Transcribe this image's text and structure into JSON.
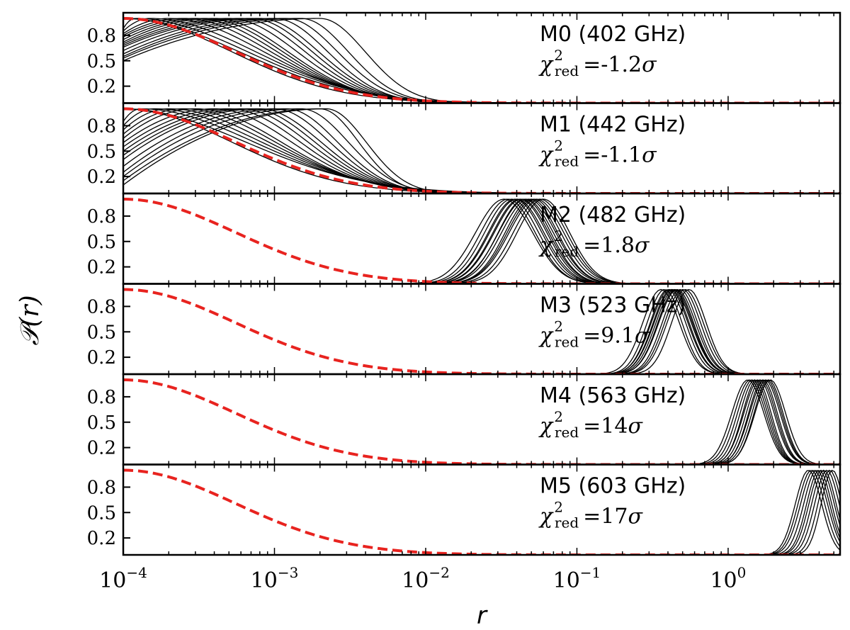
{
  "chart_data": {
    "type": "line",
    "xlabel": "r",
    "ylabel": "𝒫(r)",
    "x_scale": "log",
    "xlim": [
      0.0001,
      5.5
    ],
    "ylim": [
      0,
      1
    ],
    "grid": false,
    "x_ticks": [
      {
        "value": 0.0001,
        "base": "10",
        "exp": "−4"
      },
      {
        "value": 0.001,
        "base": "10",
        "exp": "−3"
      },
      {
        "value": 0.01,
        "base": "10",
        "exp": "−2"
      },
      {
        "value": 0.1,
        "base": "10",
        "exp": "−1"
      },
      {
        "value": 1,
        "base": "10",
        "exp": "0"
      }
    ],
    "y_ticks": [
      {
        "value": 0.2,
        "label": "0.2"
      },
      {
        "value": 0.5,
        "label": "0.5"
      },
      {
        "value": 0.8,
        "label": "0.8"
      }
    ],
    "reference_curve": {
      "color": "#e8231f",
      "style": "dashed",
      "shape": "half-gaussian in log r",
      "peak_r": 0.0001,
      "half_max_r": 0.00075,
      "zero_r": 0.004
    },
    "panels": [
      {
        "label": "M0 (402 GHz)",
        "chi_value": "=-1.2",
        "chi_unit": "σ",
        "curve_color": "#000000",
        "curve_family": "decreasing",
        "curves": [
          {
            "peak_r": 0.0001,
            "half_max_r": 0.0007,
            "min_level": 0.95
          },
          {
            "peak_r": 0.0001,
            "half_max_r": 0.0008,
            "min_level": 0.92
          },
          {
            "peak_r": 0.00012,
            "half_max_r": 0.0009,
            "min_level": 0.88
          },
          {
            "peak_r": 0.00015,
            "half_max_r": 0.001,
            "min_level": 0.85
          },
          {
            "peak_r": 0.0002,
            "half_max_r": 0.0011,
            "min_level": 0.82
          },
          {
            "peak_r": 0.00025,
            "half_max_r": 0.0012,
            "min_level": 0.8
          },
          {
            "peak_r": 0.0003,
            "half_max_r": 0.0013,
            "min_level": 0.78
          },
          {
            "peak_r": 0.00035,
            "half_max_r": 0.0014,
            "min_level": 0.75
          },
          {
            "peak_r": 0.0004,
            "half_max_r": 0.0015,
            "min_level": 0.72
          },
          {
            "peak_r": 0.0005,
            "half_max_r": 0.0017,
            "min_level": 0.7
          },
          {
            "peak_r": 0.0006,
            "half_max_r": 0.0019,
            "min_level": 0.68
          },
          {
            "peak_r": 0.0007,
            "half_max_r": 0.0021,
            "min_level": 0.66
          },
          {
            "peak_r": 0.0008,
            "half_max_r": 0.0023,
            "min_level": 0.62
          },
          {
            "peak_r": 0.001,
            "half_max_r": 0.0026,
            "min_level": 0.58
          },
          {
            "peak_r": 0.0012,
            "half_max_r": 0.003,
            "min_level": 0.55
          },
          {
            "peak_r": 0.0015,
            "half_max_r": 0.0035,
            "min_level": 0.53
          },
          {
            "peak_r": 0.002,
            "half_max_r": 0.0045,
            "min_level": 0.5
          }
        ]
      },
      {
        "label": "M1 (442 GHz)",
        "chi_value": "=-1.1",
        "chi_unit": "σ",
        "curve_color": "#000000",
        "curve_family": "decreasing",
        "curves": [
          {
            "peak_r": 0.0001,
            "half_max_r": 0.0007,
            "min_level": 0.95
          },
          {
            "peak_r": 0.0001,
            "half_max_r": 0.0009,
            "min_level": 0.9
          },
          {
            "peak_r": 0.00013,
            "half_max_r": 0.001,
            "min_level": 0.85
          },
          {
            "peak_r": 0.00016,
            "half_max_r": 0.0011,
            "min_level": 0.8
          },
          {
            "peak_r": 0.0002,
            "half_max_r": 0.0012,
            "min_level": 0.75
          },
          {
            "peak_r": 0.00025,
            "half_max_r": 0.0013,
            "min_level": 0.7
          },
          {
            "peak_r": 0.0003,
            "half_max_r": 0.0014,
            "min_level": 0.65
          },
          {
            "peak_r": 0.0004,
            "half_max_r": 0.0016,
            "min_level": 0.6
          },
          {
            "peak_r": 0.0005,
            "half_max_r": 0.0018,
            "min_level": 0.55
          },
          {
            "peak_r": 0.0006,
            "half_max_r": 0.002,
            "min_level": 0.5
          },
          {
            "peak_r": 0.0007,
            "half_max_r": 0.0022,
            "min_level": 0.45
          },
          {
            "peak_r": 0.0008,
            "half_max_r": 0.0024,
            "min_level": 0.4
          },
          {
            "peak_r": 0.001,
            "half_max_r": 0.0027,
            "min_level": 0.32
          },
          {
            "peak_r": 0.0012,
            "half_max_r": 0.003,
            "min_level": 0.25
          },
          {
            "peak_r": 0.0015,
            "half_max_r": 0.0035,
            "min_level": 0.2
          },
          {
            "peak_r": 0.002,
            "half_max_r": 0.004,
            "min_level": 0.15
          },
          {
            "peak_r": 0.0022,
            "half_max_r": 0.0045,
            "min_level": 0.1
          }
        ]
      },
      {
        "label": "M2 (482 GHz)",
        "chi_value": "=1.8",
        "chi_unit": "σ",
        "curve_color": "#000000",
        "curve_family": "peaked",
        "curves": [
          {
            "peak_r": 0.033,
            "half_max_r": 0.055
          },
          {
            "peak_r": 0.035,
            "half_max_r": 0.057
          },
          {
            "peak_r": 0.037,
            "half_max_r": 0.06
          },
          {
            "peak_r": 0.039,
            "half_max_r": 0.063
          },
          {
            "peak_r": 0.04,
            "half_max_r": 0.065
          },
          {
            "peak_r": 0.042,
            "half_max_r": 0.068
          },
          {
            "peak_r": 0.043,
            "half_max_r": 0.07
          },
          {
            "peak_r": 0.045,
            "half_max_r": 0.072
          },
          {
            "peak_r": 0.046,
            "half_max_r": 0.075
          },
          {
            "peak_r": 0.048,
            "half_max_r": 0.078
          },
          {
            "peak_r": 0.05,
            "half_max_r": 0.08
          },
          {
            "peak_r": 0.052,
            "half_max_r": 0.084
          },
          {
            "peak_r": 0.054,
            "half_max_r": 0.088
          },
          {
            "peak_r": 0.057,
            "half_max_r": 0.092
          },
          {
            "peak_r": 0.06,
            "half_max_r": 0.096
          }
        ]
      },
      {
        "label": "M3 (523 GHz)",
        "chi_value": "=9.1",
        "chi_unit": "σ",
        "curve_color": "#000000",
        "curve_family": "peaked",
        "curves": [
          {
            "peak_r": 0.36,
            "half_max_r": 0.5
          },
          {
            "peak_r": 0.38,
            "half_max_r": 0.52
          },
          {
            "peak_r": 0.4,
            "half_max_r": 0.55
          },
          {
            "peak_r": 0.41,
            "half_max_r": 0.57
          },
          {
            "peak_r": 0.42,
            "half_max_r": 0.58
          },
          {
            "peak_r": 0.43,
            "half_max_r": 0.6
          },
          {
            "peak_r": 0.44,
            "half_max_r": 0.61
          },
          {
            "peak_r": 0.45,
            "half_max_r": 0.62
          },
          {
            "peak_r": 0.46,
            "half_max_r": 0.64
          },
          {
            "peak_r": 0.48,
            "half_max_r": 0.66
          },
          {
            "peak_r": 0.5,
            "half_max_r": 0.69
          },
          {
            "peak_r": 0.52,
            "half_max_r": 0.72
          },
          {
            "peak_r": 0.55,
            "half_max_r": 0.75
          }
        ]
      },
      {
        "label": "M4 (563 GHz)",
        "chi_value": "=14",
        "chi_unit": "σ",
        "curve_color": "#000000",
        "curve_family": "peaked",
        "curves": [
          {
            "peak_r": 1.35,
            "half_max_r": 1.8
          },
          {
            "peak_r": 1.4,
            "half_max_r": 1.85
          },
          {
            "peak_r": 1.45,
            "half_max_r": 1.9
          },
          {
            "peak_r": 1.5,
            "half_max_r": 1.95
          },
          {
            "peak_r": 1.55,
            "half_max_r": 2.0
          },
          {
            "peak_r": 1.6,
            "half_max_r": 2.1
          },
          {
            "peak_r": 1.65,
            "half_max_r": 2.15
          },
          {
            "peak_r": 1.7,
            "half_max_r": 2.2
          },
          {
            "peak_r": 1.75,
            "half_max_r": 2.3
          },
          {
            "peak_r": 1.8,
            "half_max_r": 2.35
          },
          {
            "peak_r": 1.85,
            "half_max_r": 2.4
          },
          {
            "peak_r": 1.9,
            "half_max_r": 2.5
          }
        ]
      },
      {
        "label": "M5 (603 GHz)",
        "chi_value": "=17",
        "chi_unit": "σ",
        "curve_color": "#000000",
        "curve_family": "peaked",
        "curves": [
          {
            "peak_r": 3.4,
            "half_max_r": 4.3
          },
          {
            "peak_r": 3.55,
            "half_max_r": 4.5
          },
          {
            "peak_r": 3.7,
            "half_max_r": 4.7
          },
          {
            "peak_r": 3.85,
            "half_max_r": 4.85
          },
          {
            "peak_r": 4.0,
            "half_max_r": 5.0
          },
          {
            "peak_r": 4.15,
            "half_max_r": 5.2
          },
          {
            "peak_r": 4.3,
            "half_max_r": 5.35
          },
          {
            "peak_r": 4.5,
            "half_max_r": 5.6
          },
          {
            "peak_r": 4.7,
            "half_max_r": 5.8
          },
          {
            "peak_r": 4.9,
            "half_max_r": 6.0
          }
        ]
      }
    ]
  }
}
